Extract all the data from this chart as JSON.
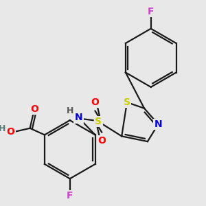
{
  "background_color": "#e8e8e8",
  "figsize": [
    3.0,
    3.0
  ],
  "dpi": 100,
  "line_color": "#1a1a1a",
  "lw": 1.6,
  "atom_colors": {
    "S": "#cccc00",
    "N": "#0000dd",
    "O": "#ff0000",
    "F": "#cc44cc",
    "H": "#555555",
    "C": "#1a1a1a"
  },
  "font_size": 9.5
}
